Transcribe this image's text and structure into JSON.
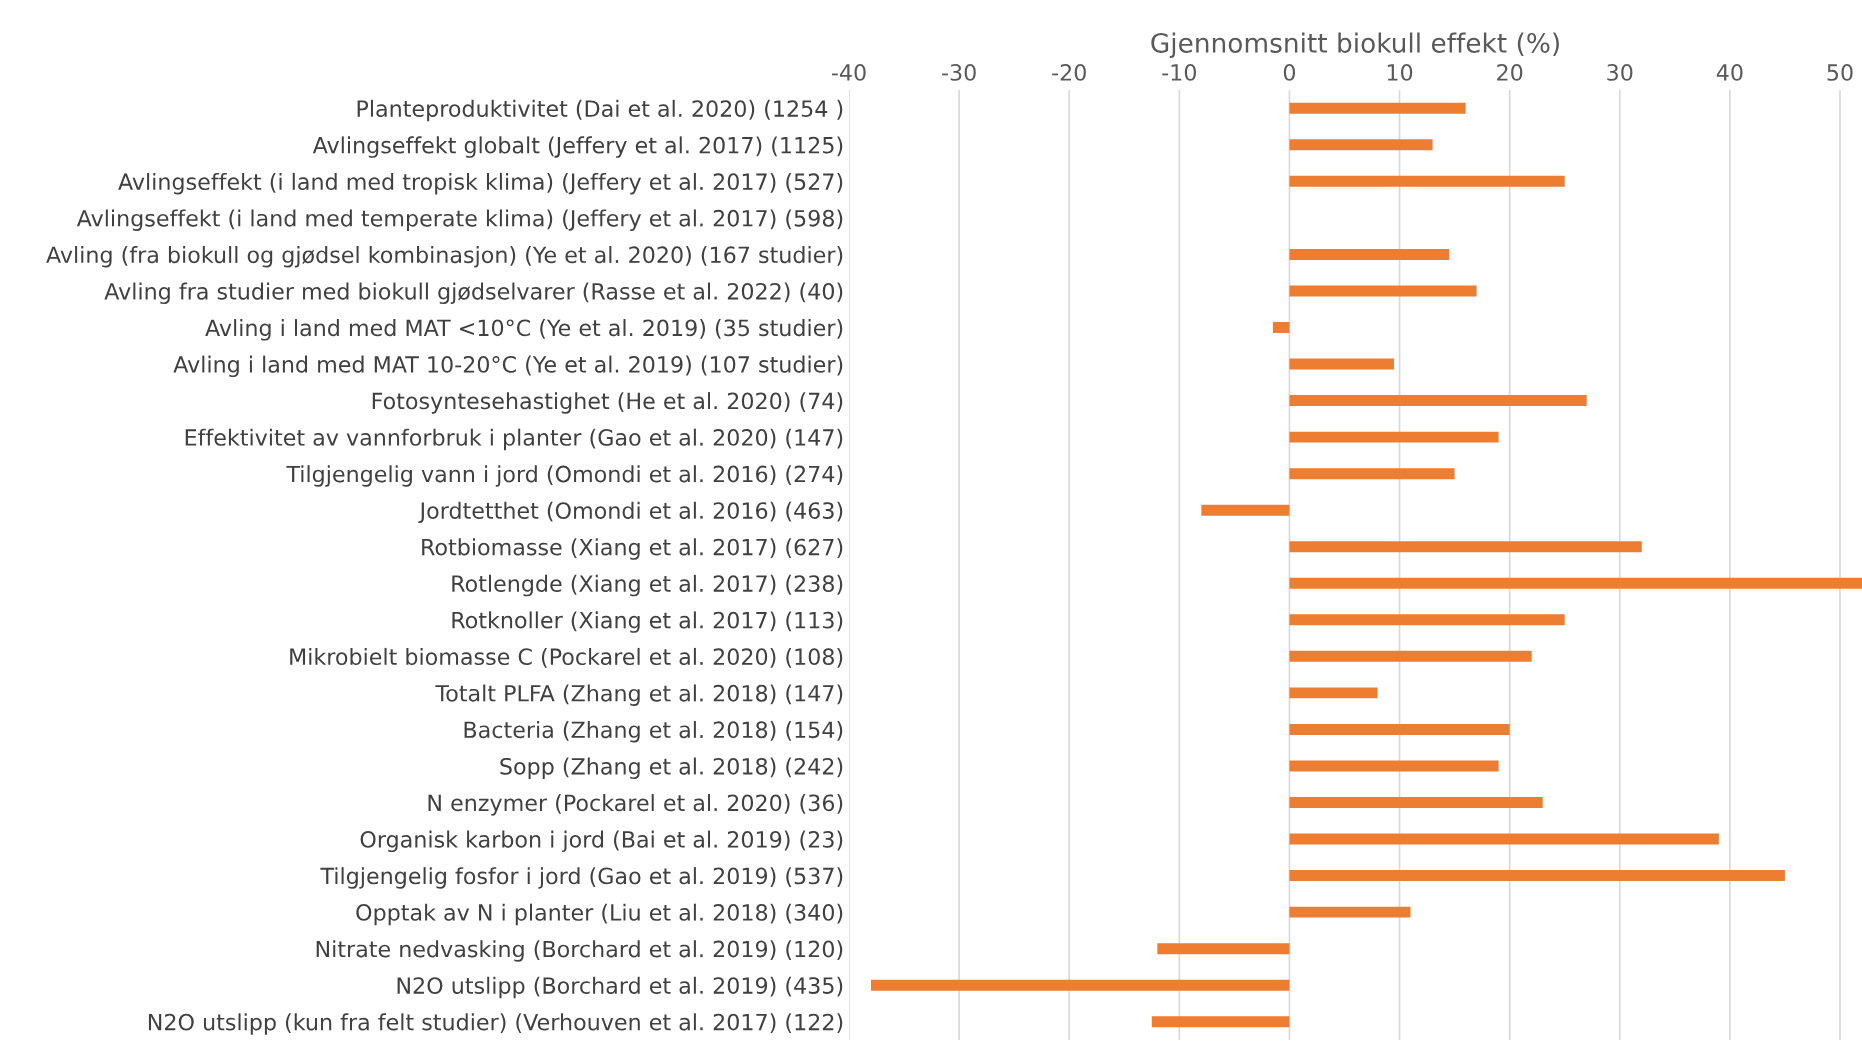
{
  "chart_data": {
    "type": "bar",
    "orientation": "horizontal",
    "xlabel": "Gjennomsnitt biokull effekt (%)",
    "categories": [
      "Planteproduktivitet (Dai et al. 2020) (1254 )",
      "Avlingseffekt globalt (Jeffery et al. 2017) (1125)",
      "Avlingseffekt (i land med tropisk klima) (Jeffery et al. 2017) (527)",
      "Avlingseffekt (i land med temperate klima) (Jeffery et al. 2017) (598)",
      "Avling (fra biokull og gjødsel kombinasjon) (Ye et al. 2020) (167 studier)",
      "Avling fra studier med biokull gjødselvarer (Rasse et al. 2022) (40)",
      "Avling i land med MAT <10°C (Ye et al. 2019) (35 studier)",
      "Avling i land med MAT 10-20°C (Ye et al. 2019) (107 studier)",
      "Fotosyntesehastighet (He et al. 2020) (74)",
      "Effektivitet av vannforbruk i planter (Gao et al. 2020) (147)",
      "Tilgjengelig vann i jord (Omondi et al. 2016) (274)",
      "Jordtetthet (Omondi et al. 2016) (463)",
      "Rotbiomasse (Xiang et al. 2017) (627)",
      "Rotlengde (Xiang et al. 2017) (238)",
      "Rotknoller (Xiang et al. 2017) (113)",
      "Mikrobielt biomasse C (Pockarel et al. 2020) (108)",
      "Totalt PLFA (Zhang et al. 2018) (147)",
      "Bacteria (Zhang et al. 2018) (154)",
      "Sopp (Zhang et al. 2018) (242)",
      "N enzymer (Pockarel et al. 2020) (36)",
      "Organisk karbon i jord (Bai et al. 2019) (23)",
      "Tilgjengelig fosfor i jord (Gao et al. 2019) (537)",
      "Opptak av N i planter (Liu et al. 2018) (340)",
      "Nitrate nedvasking (Borchard et al. 2019) (120)",
      "N2O utslipp (Borchard et al. 2019) (435)",
      "N2O utslipp (kun fra felt studier) (Verhouven et al. 2017) (122)"
    ],
    "values": [
      16,
      13,
      25,
      0,
      14.5,
      17,
      -1.5,
      9.5,
      27,
      19,
      15,
      -8,
      32,
      52,
      25,
      22,
      8,
      20,
      19,
      23,
      39,
      45,
      11,
      -12,
      -38,
      -12.5
    ],
    "color": "#ed7d31",
    "xlim": [
      -40,
      52
    ],
    "xticks": [
      -40,
      -30,
      -20,
      -10,
      0,
      10,
      20,
      30,
      40,
      50
    ],
    "grid": "x"
  }
}
